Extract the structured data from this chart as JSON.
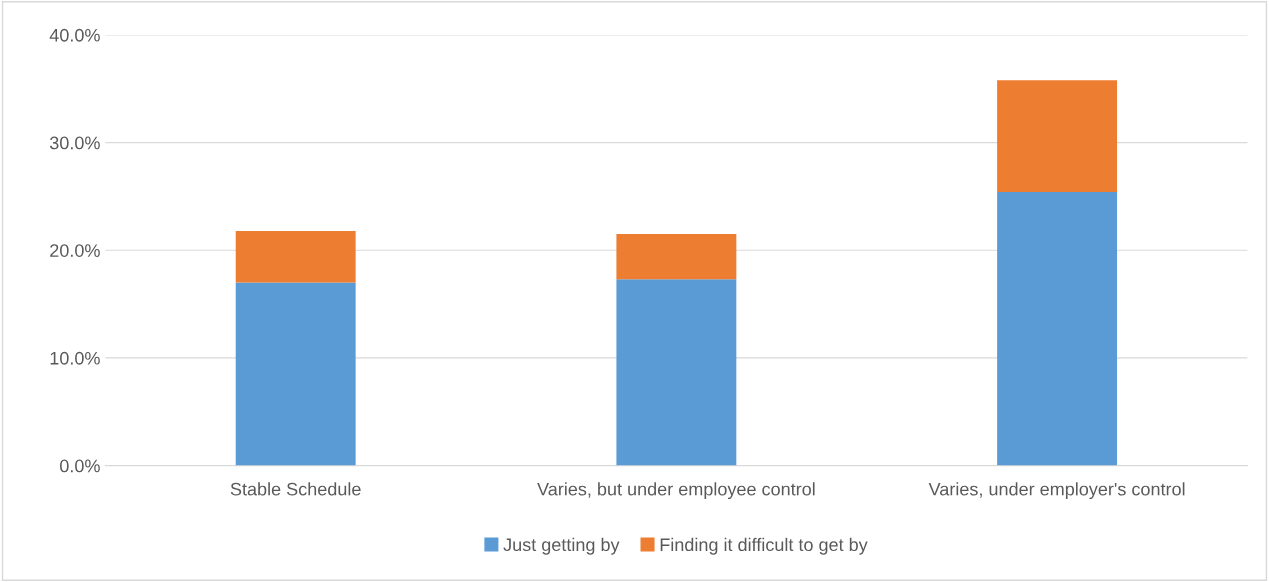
{
  "chart_data": {
    "type": "bar",
    "stacked": true,
    "categories": [
      "Stable Schedule",
      "Varies, but under employee control",
      "Varies, under employer's control"
    ],
    "series": [
      {
        "name": "Just getting by",
        "color": "#5b9bd5",
        "values": [
          17.0,
          17.3,
          25.4
        ]
      },
      {
        "name": "Finding it difficult to get by",
        "color": "#ed7d31",
        "values": [
          4.8,
          4.2,
          10.4
        ]
      }
    ],
    "ylim": [
      0,
      40
    ],
    "yticks": [
      {
        "value": 0,
        "label": "0.0%"
      },
      {
        "value": 10,
        "label": "10.0%"
      },
      {
        "value": 20,
        "label": "20.0%"
      },
      {
        "value": 30,
        "label": "30.0%"
      },
      {
        "value": 40,
        "label": "40.0%"
      }
    ],
    "grid": "y",
    "legend": "bottom"
  }
}
